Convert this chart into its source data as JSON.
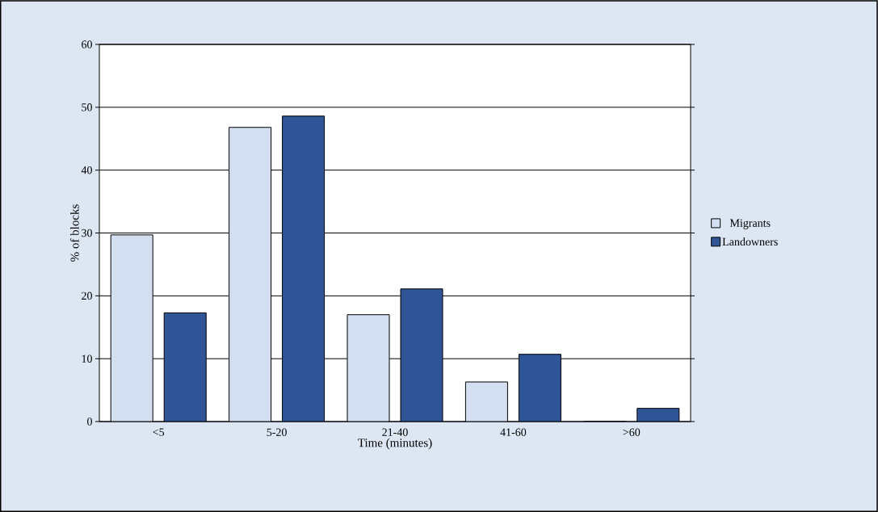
{
  "chart_data": {
    "type": "bar",
    "xlabel": "Time (minutes)",
    "ylabel": "% of blocks",
    "categories": [
      "<5",
      "5-20",
      "21-40",
      "41-60",
      ">60"
    ],
    "series": [
      {
        "name": "Migrants",
        "color": "#d3def0",
        "values": [
          29.7,
          46.8,
          17.0,
          6.3,
          0
        ]
      },
      {
        "name": "Landowners",
        "color": "#2f5597",
        "values": [
          17.3,
          48.6,
          21.1,
          10.7,
          2.1
        ]
      }
    ],
    "ylim": [
      0,
      60
    ],
    "yticks": [
      0,
      10,
      20,
      30,
      40,
      50,
      60
    ],
    "grid": "y",
    "legend": "right"
  }
}
